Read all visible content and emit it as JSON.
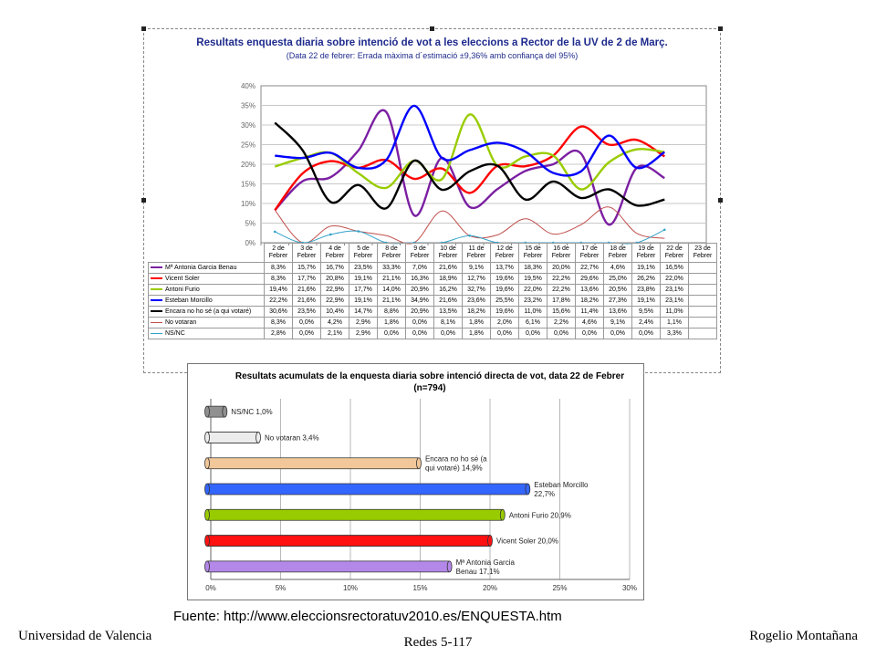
{
  "chart_data": [
    {
      "type": "line",
      "title": "Resultats enquesta diaria sobre intenció de vot a les eleccions a Rector de la UV de 2 de Març.",
      "note": "(Data 22 de febrer: Errada màxima d´estimació ±9,36% amb confiança del 95%)",
      "categories": [
        "2 de Febrer",
        "3 de Febrer",
        "4 de Febrer",
        "5 de Febrer",
        "8 de Febrer",
        "9 de Febrer",
        "10 de Febrer",
        "11 de Febrer",
        "12 de Febrer",
        "15 de Febrer",
        "16 de Febrer",
        "17 de Febrer",
        "18 de Febrer",
        "19 de Febrer",
        "22 de Febrer",
        "23 de Febrer"
      ],
      "ylim": [
        0,
        40
      ],
      "y_ticks": [
        "0%",
        "5%",
        "10%",
        "15%",
        "20%",
        "25%",
        "30%",
        "35%",
        "40%"
      ],
      "grid": true,
      "series": [
        {
          "name": "Mª Antonia Garcia Benau",
          "color": "#7b1fa2",
          "values": [
            8.3,
            15.7,
            16.7,
            23.5,
            33.3,
            7.0,
            21.6,
            9.1,
            13.7,
            18.3,
            20.0,
            22.7,
            4.6,
            19.1,
            16.5,
            null
          ],
          "labels": [
            "8,3%",
            "15,7%",
            "16,7%",
            "23,5%",
            "33,3%",
            "7,0%",
            "21,6%",
            "9,1%",
            "13,7%",
            "18,3%",
            "20,0%",
            "22,7%",
            "4,6%",
            "19,1%",
            "16,5%",
            ""
          ]
        },
        {
          "name": "Vicent Soler",
          "color": "#ff0000",
          "values": [
            8.3,
            17.7,
            20.8,
            19.1,
            21.1,
            16.3,
            18.9,
            12.7,
            19.6,
            19.5,
            22.2,
            29.6,
            25.0,
            26.2,
            22.0,
            null
          ],
          "labels": [
            "8,3%",
            "17,7%",
            "20,8%",
            "19,1%",
            "21,1%",
            "16,3%",
            "18,9%",
            "12,7%",
            "19,6%",
            "19,5%",
            "22,2%",
            "29,6%",
            "25,0%",
            "26,2%",
            "22,0%",
            ""
          ]
        },
        {
          "name": "Antoni Furio",
          "color": "#99cc00",
          "values": [
            19.4,
            21.6,
            22.9,
            17.7,
            14.0,
            20.9,
            16.2,
            32.7,
            19.6,
            22.0,
            22.2,
            13.6,
            20.5,
            23.8,
            23.1,
            null
          ],
          "labels": [
            "19,4%",
            "21,6%",
            "22,9%",
            "17,7%",
            "14,0%",
            "20,9%",
            "16,2%",
            "32,7%",
            "19,6%",
            "22,0%",
            "22,2%",
            "13,6%",
            "20,5%",
            "23,8%",
            "23,1%",
            ""
          ]
        },
        {
          "name": "Esteban Morcillo",
          "color": "#0000ff",
          "values": [
            22.2,
            21.6,
            22.9,
            19.1,
            21.1,
            34.9,
            21.6,
            23.6,
            25.5,
            23.2,
            17.8,
            18.2,
            27.3,
            19.1,
            23.1,
            null
          ],
          "labels": [
            "22,2%",
            "21,6%",
            "22,9%",
            "19,1%",
            "21,1%",
            "34,9%",
            "21,6%",
            "23,6%",
            "25,5%",
            "23,2%",
            "17,8%",
            "18,2%",
            "27,3%",
            "19,1%",
            "23,1%",
            ""
          ]
        },
        {
          "name": "Encara no ho sé (a qui votaré)",
          "color": "#000000",
          "values": [
            30.6,
            23.5,
            10.4,
            14.7,
            8.8,
            20.9,
            13.5,
            18.2,
            19.6,
            11.0,
            15.6,
            11.4,
            13.6,
            9.5,
            11.0,
            null
          ],
          "labels": [
            "30,6%",
            "23,5%",
            "10,4%",
            "14,7%",
            "8,8%",
            "20,9%",
            "13,5%",
            "18,2%",
            "19,6%",
            "11,0%",
            "15,6%",
            "11,4%",
            "13,6%",
            "9,5%",
            "11,0%",
            ""
          ]
        },
        {
          "name": "No votaran",
          "color": "#c0504d",
          "values": [
            8.3,
            0.0,
            4.2,
            2.9,
            1.8,
            0.0,
            8.1,
            1.8,
            2.0,
            6.1,
            2.2,
            4.6,
            9.1,
            2.4,
            1.1,
            null
          ],
          "labels": [
            "8,3%",
            "0,0%",
            "4,2%",
            "2,9%",
            "1,8%",
            "0,0%",
            "8,1%",
            "1,8%",
            "2,0%",
            "6,1%",
            "2,2%",
            "4,6%",
            "9,1%",
            "2,4%",
            "1,1%",
            ""
          ]
        },
        {
          "name": "NS/NC",
          "color": "#33a3c9",
          "values": [
            2.8,
            0.0,
            2.1,
            2.9,
            0.0,
            0.0,
            0.0,
            1.8,
            0.0,
            0.0,
            0.0,
            0.0,
            0.0,
            0.0,
            3.3,
            null
          ],
          "labels": [
            "2,8%",
            "0,0%",
            "2,1%",
            "2,9%",
            "0,0%",
            "0,0%",
            "0,0%",
            "1,8%",
            "0,0%",
            "0,0%",
            "0,0%",
            "0,0%",
            "0,0%",
            "0,0%",
            "3,3%",
            ""
          ]
        }
      ]
    },
    {
      "type": "bar",
      "orientation": "horizontal",
      "title": "Resultats acumulats de la enquesta diaria sobre intenció directa de vot, data 22 de Febrer  (n=794)",
      "xlim": [
        0,
        30
      ],
      "x_ticks": [
        "0%",
        "5%",
        "10%",
        "15%",
        "20%",
        "25%",
        "30%"
      ],
      "grid": true,
      "bars": [
        {
          "label": "NS/NC 1,0%",
          "value": 1.0,
          "color": "#909090"
        },
        {
          "label": "No votaran 3,4%",
          "value": 3.4,
          "color": "#ececec"
        },
        {
          "label": "Encara no ho sé (a qui votaré) 14,9%",
          "value": 14.9,
          "color": "#f2c79a"
        },
        {
          "label": "Esteban Morcillo 22,7%",
          "value": 22.7,
          "color": "#3366ff"
        },
        {
          "label": "Antoni Furio 20,9%",
          "value": 20.9,
          "color": "#99cc00"
        },
        {
          "label": "Vicent Soler 20,0%",
          "value": 20.0,
          "color": "#ff1111"
        },
        {
          "label": "Mª Antonia Garcia Benau 17,1%",
          "value": 17.1,
          "color": "#b388e8"
        }
      ]
    }
  ],
  "source": "Fuente: http://www.eleccionsrectoratuv2010.es/ENQUESTA.htm",
  "footer": {
    "left": "Universidad de Valencia",
    "center": "Redes 5-117",
    "right": "Rogelio Montañana"
  }
}
